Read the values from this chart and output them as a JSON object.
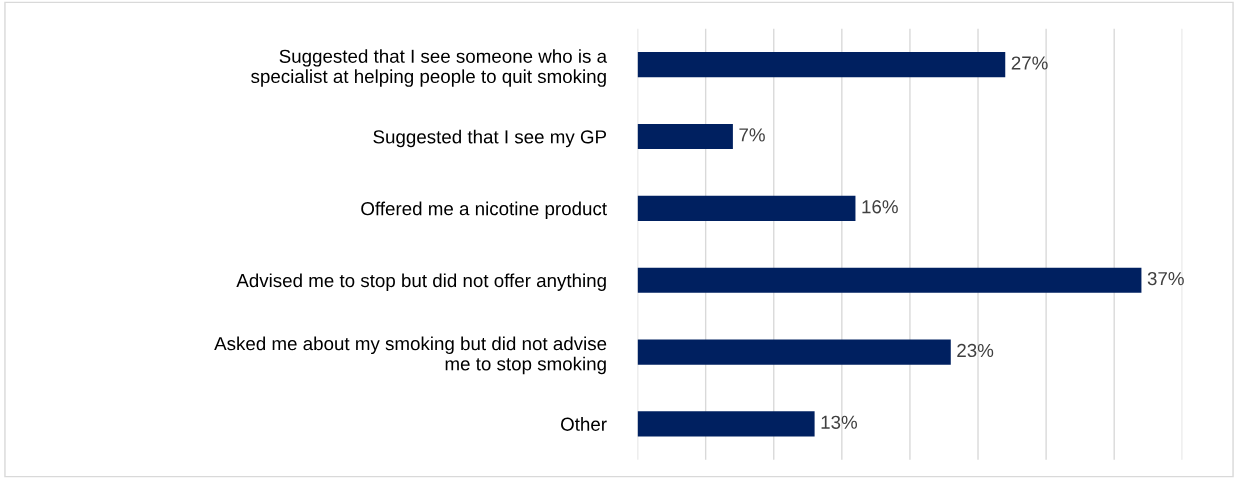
{
  "chart_data": {
    "type": "bar",
    "orientation": "horizontal",
    "categories": [
      "Suggested that I see someone who is a\nspecialist at helping people to quit smoking",
      "Suggested that I see my GP",
      "Offered me a nicotine product",
      "Advised me to stop but did not offer anything",
      "Asked me about my smoking but did not advise\nme to stop smoking",
      "Other"
    ],
    "values": [
      27,
      7,
      16,
      37,
      23,
      13
    ],
    "value_labels": [
      "27%",
      "7%",
      "16%",
      "37%",
      "23%",
      "13%"
    ],
    "color": "#002060",
    "xlim": [
      0,
      40
    ],
    "xticks": [
      {
        "value": 0,
        "label": null
      },
      {
        "value": 5,
        "label": null
      },
      {
        "value": 10,
        "label": null
      },
      {
        "value": 15,
        "label": null
      },
      {
        "value": 20,
        "label": null
      },
      {
        "value": 25,
        "label": null
      },
      {
        "value": 30,
        "label": null
      },
      {
        "value": 35,
        "label": null
      },
      {
        "value": 40,
        "label": null
      }
    ],
    "tick_labels": "y",
    "grid": "x",
    "legend": false
  }
}
